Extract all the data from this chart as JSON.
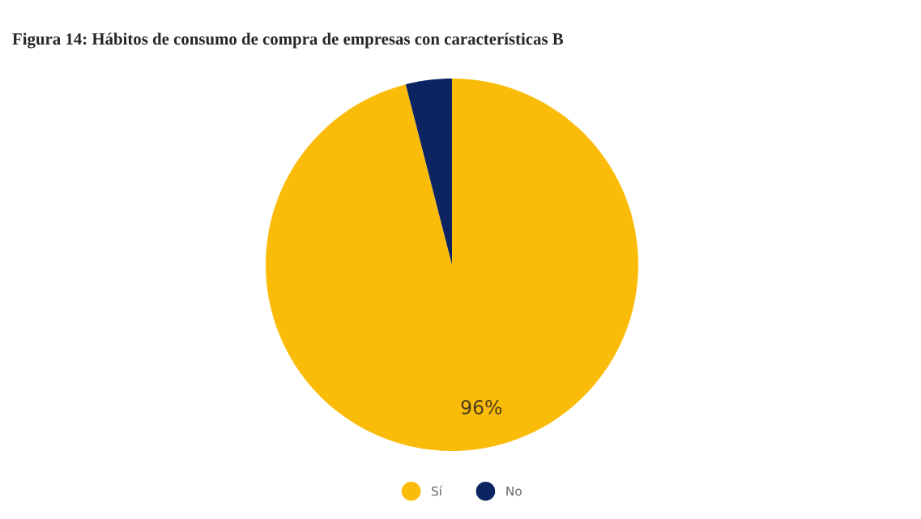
{
  "chart_data": {
    "type": "pie",
    "title": "Figura 14: Hábitos de consumo de compra de empresas con características B",
    "categories": [
      "Sí",
      "No"
    ],
    "values": [
      96,
      4
    ],
    "colors": [
      "#fbbc09",
      "#0c2461"
    ],
    "value_labels": [
      "96%",
      null
    ],
    "legend": "bottom"
  }
}
